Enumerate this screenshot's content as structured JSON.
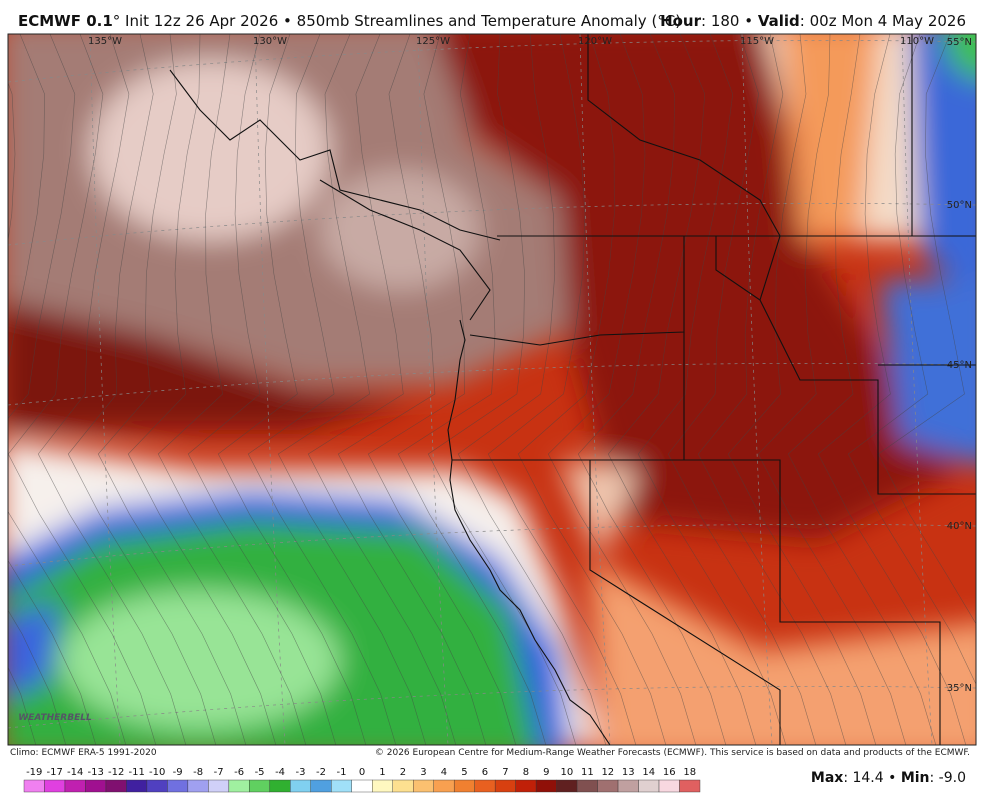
{
  "header": {
    "left": [
      {
        "text": "ECMWF 0.1",
        "bold": true
      },
      {
        "text": "° Init 12z 26 Apr 2026 • 850mb Streamlines and Temperature Anomaly (°C)"
      }
    ],
    "right": [
      {
        "text": "Hour",
        "bold": true
      },
      {
        "text": ": 180 • "
      },
      {
        "text": "Valid",
        "bold": true
      },
      {
        "text": ": 00z Mon 4 May 2026"
      }
    ]
  },
  "map": {
    "lon_labels": [
      "135°W",
      "130°W",
      "125°W",
      "120°W",
      "115°W",
      "110°W"
    ],
    "lat_labels": [
      "55°N",
      "50°N",
      "45°N",
      "40°N",
      "35°N"
    ],
    "logo": "WEATHERBELL"
  },
  "footer": {
    "climo": "Climo: ECMWF ERA-5 1991-2020",
    "copyright": "© 2026 European Centre for Medium-Range Weather Forecasts (ECMWF). This service is based on data and products of the ECMWF."
  },
  "colorbar": {
    "labels": [
      -19,
      -17,
      -14,
      -13,
      -12,
      -11,
      -10,
      -9,
      -8,
      -7,
      -6,
      -5,
      -4,
      -3,
      -2,
      -1,
      0,
      1,
      2,
      3,
      4,
      5,
      6,
      7,
      8,
      9,
      10,
      11,
      12,
      13,
      14,
      16,
      18
    ],
    "colors": [
      "#f080f0",
      "#e040e0",
      "#c020b0",
      "#a01090",
      "#801070",
      "#4020a0",
      "#5040c0",
      "#7070e0",
      "#a0a0f0",
      "#d0d0f8",
      "#a0f0a0",
      "#60d060",
      "#30b030",
      "#80d0f0",
      "#50a0e0",
      "#a0e0f8",
      "#ffffff",
      "#fff8c0",
      "#fde090",
      "#fbc070",
      "#f8a050",
      "#f08030",
      "#e86020",
      "#d84010",
      "#c02008",
      "#901008",
      "#602020",
      "#805050",
      "#a07070",
      "#c0a0a0",
      "#e0d0d0",
      "#f8d8e0",
      "#e06060"
    ]
  },
  "stats": [
    {
      "text": "Max",
      "bold": true
    },
    {
      "text": ": 14.4 • "
    },
    {
      "text": "Min",
      "bold": true
    },
    {
      "text": ": -9.0"
    }
  ]
}
